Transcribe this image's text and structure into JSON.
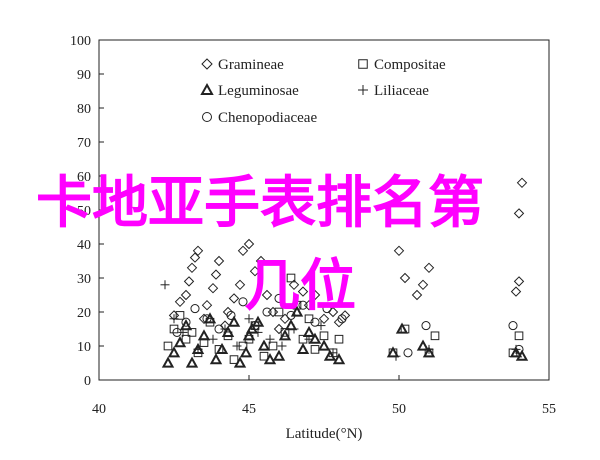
{
  "chart_data": {
    "type": "scatter",
    "xlabel": "Latitude(°N)",
    "ylabel": "",
    "xlim": [
      40,
      55
    ],
    "ylim": [
      0,
      100
    ],
    "xticks": [
      40,
      45,
      50,
      55
    ],
    "yticks": [
      0,
      10,
      20,
      30,
      40,
      50,
      60,
      70,
      80,
      90,
      100
    ],
    "grid": false,
    "legend_position": "top-left",
    "series": [
      {
        "name": "Gramineae",
        "marker": "diamond",
        "points": [
          [
            42.5,
            19
          ],
          [
            42.7,
            23
          ],
          [
            42.9,
            25
          ],
          [
            43.0,
            29
          ],
          [
            43.1,
            33
          ],
          [
            43.2,
            36
          ],
          [
            43.3,
            38
          ],
          [
            43.5,
            18
          ],
          [
            43.6,
            22
          ],
          [
            43.8,
            27
          ],
          [
            43.9,
            31
          ],
          [
            44.0,
            35
          ],
          [
            44.2,
            16
          ],
          [
            44.3,
            20
          ],
          [
            44.5,
            24
          ],
          [
            44.7,
            28
          ],
          [
            44.8,
            38
          ],
          [
            45.0,
            40
          ],
          [
            45.2,
            32
          ],
          [
            45.4,
            35
          ],
          [
            45.6,
            25
          ],
          [
            45.8,
            20
          ],
          [
            46.0,
            15
          ],
          [
            46.2,
            18
          ],
          [
            46.5,
            28
          ],
          [
            46.8,
            26
          ],
          [
            47.0,
            22
          ],
          [
            47.2,
            25
          ],
          [
            47.5,
            18
          ],
          [
            47.8,
            20
          ],
          [
            48.0,
            17
          ],
          [
            48.2,
            19
          ],
          [
            50.0,
            38
          ],
          [
            50.2,
            30
          ],
          [
            50.6,
            25
          ],
          [
            50.8,
            28
          ],
          [
            51.0,
            33
          ],
          [
            53.9,
            26
          ],
          [
            54.0,
            29
          ],
          [
            54.1,
            58
          ],
          [
            54.0,
            49
          ]
        ]
      },
      {
        "name": "Compositae",
        "marker": "square",
        "points": [
          [
            42.3,
            10
          ],
          [
            42.5,
            15
          ],
          [
            42.7,
            19
          ],
          [
            42.9,
            12
          ],
          [
            43.1,
            14
          ],
          [
            43.3,
            8
          ],
          [
            43.5,
            11
          ],
          [
            43.7,
            17
          ],
          [
            44.0,
            9
          ],
          [
            44.3,
            13
          ],
          [
            44.5,
            6
          ],
          [
            44.8,
            10
          ],
          [
            45.0,
            12
          ],
          [
            45.2,
            16
          ],
          [
            45.5,
            7
          ],
          [
            45.8,
            10
          ],
          [
            46.0,
            20
          ],
          [
            46.2,
            14
          ],
          [
            46.4,
            30
          ],
          [
            46.6,
            22
          ],
          [
            46.8,
            12
          ],
          [
            47.0,
            18
          ],
          [
            47.2,
            9
          ],
          [
            47.5,
            13
          ],
          [
            47.8,
            8
          ],
          [
            48.0,
            12
          ],
          [
            49.8,
            8
          ],
          [
            50.2,
            15
          ],
          [
            51.0,
            8
          ],
          [
            51.2,
            13
          ],
          [
            53.8,
            8
          ],
          [
            54.0,
            13
          ]
        ]
      },
      {
        "name": "Leguminosae",
        "marker": "triangle",
        "points": [
          [
            42.3,
            5
          ],
          [
            42.5,
            8
          ],
          [
            42.7,
            11
          ],
          [
            42.9,
            16
          ],
          [
            43.1,
            5
          ],
          [
            43.3,
            9
          ],
          [
            43.5,
            13
          ],
          [
            43.7,
            18
          ],
          [
            43.9,
            6
          ],
          [
            44.1,
            9
          ],
          [
            44.3,
            14
          ],
          [
            44.5,
            17
          ],
          [
            44.7,
            5
          ],
          [
            44.9,
            8
          ],
          [
            45.0,
            13
          ],
          [
            45.1,
            15
          ],
          [
            45.3,
            17
          ],
          [
            45.5,
            10
          ],
          [
            45.7,
            6
          ],
          [
            46.0,
            7
          ],
          [
            46.2,
            13
          ],
          [
            46.4,
            16
          ],
          [
            46.6,
            20
          ],
          [
            46.8,
            9
          ],
          [
            47.0,
            14
          ],
          [
            47.2,
            12
          ],
          [
            47.5,
            10
          ],
          [
            47.7,
            7
          ],
          [
            48.0,
            6
          ],
          [
            49.8,
            8
          ],
          [
            50.1,
            15
          ],
          [
            50.8,
            10
          ],
          [
            51.0,
            8
          ],
          [
            53.9,
            8
          ],
          [
            54.1,
            7
          ]
        ]
      },
      {
        "name": "Liliaceae",
        "marker": "plus",
        "points": [
          [
            42.2,
            28
          ],
          [
            42.5,
            18
          ],
          [
            42.8,
            14
          ],
          [
            43.3,
            9
          ],
          [
            43.8,
            12
          ],
          [
            44.2,
            15
          ],
          [
            44.6,
            10
          ],
          [
            45.0,
            18
          ],
          [
            45.3,
            14
          ],
          [
            45.7,
            12
          ],
          [
            46.1,
            10
          ],
          [
            46.5,
            15
          ],
          [
            47.0,
            12
          ],
          [
            47.4,
            16
          ],
          [
            47.8,
            8
          ],
          [
            49.9,
            7
          ],
          [
            51.0,
            9
          ],
          [
            53.9,
            9
          ]
        ]
      },
      {
        "name": "Chenopodiaceae",
        "marker": "circle",
        "points": [
          [
            42.6,
            14
          ],
          [
            42.9,
            17
          ],
          [
            43.2,
            21
          ],
          [
            43.6,
            18
          ],
          [
            44.0,
            15
          ],
          [
            44.4,
            19
          ],
          [
            44.8,
            23
          ],
          [
            45.2,
            16
          ],
          [
            45.6,
            20
          ],
          [
            46.0,
            24
          ],
          [
            46.4,
            19
          ],
          [
            46.8,
            22
          ],
          [
            47.2,
            17
          ],
          [
            47.6,
            21
          ],
          [
            48.1,
            18
          ],
          [
            50.3,
            8
          ],
          [
            50.9,
            16
          ],
          [
            53.8,
            16
          ],
          [
            54.0,
            9
          ]
        ]
      }
    ]
  },
  "overlay": {
    "line1": "卡地亚手表排名第",
    "line2": "几位"
  }
}
